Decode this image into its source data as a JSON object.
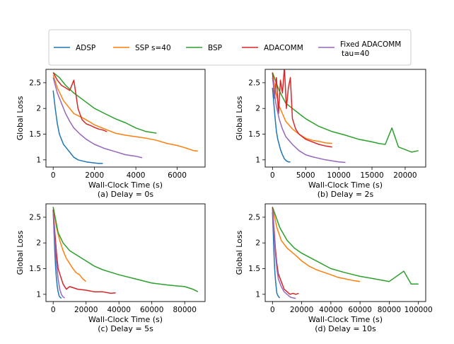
{
  "legend": {
    "placement": "top-center",
    "entries": [
      {
        "name": "ADSP",
        "color": "#1f77b4"
      },
      {
        "name": "SSP s=40",
        "color": "#ff7f0e"
      },
      {
        "name": "BSP",
        "color": "#2ca02c"
      },
      {
        "name": "ADACOMM",
        "color": "#d62728"
      },
      {
        "name": "Fixed ADACOMM",
        "name2": "tau=40",
        "color": "#9467bd"
      }
    ]
  },
  "chart_data": [
    {
      "type": "line",
      "caption": "(a) Delay = 0s",
      "xlabel": "Wall-Clock Time (s)",
      "ylabel": "Global Loss",
      "xlim": [
        -350,
        7350
      ],
      "ylim": [
        0.86,
        2.76
      ],
      "xticks": [
        0,
        2000,
        4000,
        6000
      ],
      "yticks": [
        1.0,
        1.5,
        2.0,
        2.5
      ],
      "series": [
        {
          "name": "ADSP",
          "color": "#1f77b4",
          "x": [
            0,
            100,
            200,
            300,
            400,
            500,
            600,
            700,
            800,
            900,
            1000,
            1200,
            1400,
            1600,
            1800,
            2000,
            2200,
            2400
          ],
          "y": [
            2.35,
            2.0,
            1.7,
            1.5,
            1.4,
            1.3,
            1.25,
            1.2,
            1.15,
            1.1,
            1.05,
            1.0,
            0.98,
            0.96,
            0.95,
            0.94,
            0.93,
            0.93
          ]
        },
        {
          "name": "SSP s=40",
          "color": "#ff7f0e",
          "x": [
            0,
            200,
            500,
            800,
            1000,
            1500,
            2000,
            2500,
            3000,
            3500,
            4000,
            4500,
            5000,
            5500,
            6000,
            6500,
            6800,
            7000
          ],
          "y": [
            2.65,
            2.4,
            2.15,
            2.0,
            1.9,
            1.8,
            1.68,
            1.6,
            1.52,
            1.48,
            1.45,
            1.42,
            1.38,
            1.32,
            1.28,
            1.22,
            1.18,
            1.17
          ]
        },
        {
          "name": "BSP",
          "color": "#2ca02c",
          "x": [
            0,
            300,
            600,
            1000,
            1500,
            2000,
            2500,
            3000,
            3500,
            4000,
            4500,
            5000
          ],
          "y": [
            2.7,
            2.6,
            2.45,
            2.3,
            2.15,
            2.0,
            1.9,
            1.8,
            1.72,
            1.62,
            1.55,
            1.52
          ]
        },
        {
          "name": "ADACOMM",
          "color": "#d62728",
          "x": [
            0,
            200,
            400,
            600,
            800,
            1000,
            1200,
            1400,
            1600,
            1800,
            2000,
            2200,
            2400,
            2600
          ],
          "y": [
            2.7,
            2.55,
            2.45,
            2.4,
            2.35,
            2.55,
            2.0,
            1.78,
            1.7,
            1.67,
            1.63,
            1.6,
            1.58,
            1.55
          ]
        },
        {
          "name": "Fixed ADACOMM tau=40",
          "color": "#9467bd",
          "x": [
            0,
            200,
            400,
            600,
            800,
            1000,
            1300,
            1600,
            2000,
            2500,
            3000,
            3500,
            4000,
            4300
          ],
          "y": [
            2.6,
            2.3,
            2.1,
            1.9,
            1.75,
            1.62,
            1.5,
            1.4,
            1.3,
            1.22,
            1.16,
            1.1,
            1.07,
            1.04
          ]
        }
      ]
    },
    {
      "type": "line",
      "caption": "(b) Delay = 2s",
      "xlabel": "Wall-Clock Time (s)",
      "ylabel": "Global Loss",
      "xlim": [
        -1100,
        23100
      ],
      "ylim": [
        0.86,
        2.76
      ],
      "xticks": [
        0,
        5000,
        10000,
        15000,
        20000
      ],
      "yticks": [
        1.0,
        1.5,
        2.0,
        2.5
      ],
      "series": [
        {
          "name": "ADSP",
          "color": "#1f77b4",
          "x": [
            0,
            200,
            400,
            600,
            800,
            1000,
            1200,
            1500,
            1800,
            2100,
            2400,
            2700
          ],
          "y": [
            2.4,
            2.1,
            1.8,
            1.55,
            1.4,
            1.3,
            1.2,
            1.1,
            1.02,
            0.98,
            0.96,
            0.96
          ]
        },
        {
          "name": "SSP s=40",
          "color": "#ff7f0e",
          "x": [
            0,
            500,
            1000,
            1500,
            2000,
            3000,
            4000,
            5000,
            6000,
            7000,
            8000,
            9000
          ],
          "y": [
            2.7,
            2.3,
            2.05,
            1.9,
            1.75,
            1.6,
            1.5,
            1.42,
            1.38,
            1.36,
            1.33,
            1.32
          ]
        },
        {
          "name": "BSP",
          "color": "#2ca02c",
          "x": [
            0,
            1000,
            2000,
            3000,
            4000,
            5000,
            7000,
            9000,
            11000,
            13000,
            15000,
            16000,
            17000,
            18000,
            19000,
            20000,
            21000,
            22000
          ],
          "y": [
            2.7,
            2.35,
            2.1,
            2.0,
            1.9,
            1.8,
            1.65,
            1.55,
            1.48,
            1.4,
            1.35,
            1.32,
            1.3,
            1.62,
            1.25,
            1.2,
            1.15,
            1.18
          ]
        },
        {
          "name": "ADACOMM",
          "color": "#d62728",
          "x": [
            0,
            300,
            600,
            900,
            1200,
            1500,
            1800,
            2100,
            2400,
            2700,
            3000,
            3500,
            4000,
            5000,
            6000,
            7000,
            8000,
            9000
          ],
          "y": [
            2.7,
            2.2,
            2.6,
            1.9,
            2.55,
            2.3,
            2.8,
            2.0,
            2.4,
            2.6,
            1.8,
            1.6,
            1.5,
            1.4,
            1.35,
            1.3,
            1.27,
            1.25
          ]
        },
        {
          "name": "Fixed ADACOMM tau=40",
          "color": "#9467bd",
          "x": [
            0,
            500,
            1000,
            1500,
            2000,
            3000,
            4000,
            5000,
            6000,
            7000,
            8000,
            9000,
            10000,
            11000
          ],
          "y": [
            2.6,
            2.1,
            1.8,
            1.6,
            1.45,
            1.3,
            1.18,
            1.1,
            1.06,
            1.03,
            1.0,
            0.98,
            0.96,
            0.95
          ]
        }
      ]
    },
    {
      "type": "line",
      "caption": "(c) Delay = 5s",
      "xlabel": "Wall-Clock Time (s)",
      "ylabel": "Global Loss",
      "xlim": [
        -4400,
        92400
      ],
      "ylim": [
        0.86,
        2.76
      ],
      "xticks": [
        0,
        20000,
        40000,
        60000,
        80000
      ],
      "yticks": [
        1.0,
        1.5,
        2.0,
        2.5
      ],
      "series": [
        {
          "name": "ADSP",
          "color": "#1f77b4",
          "x": [
            0,
            500,
            1000,
            1500,
            2000,
            2500,
            3000,
            3500,
            4000,
            5000
          ],
          "y": [
            2.65,
            2.2,
            1.8,
            1.5,
            1.3,
            1.15,
            1.05,
            0.98,
            0.95,
            0.92
          ]
        },
        {
          "name": "SSP s=40",
          "color": "#ff7f0e",
          "x": [
            0,
            2000,
            4000,
            6000,
            8000,
            10000,
            12000,
            14000,
            16000,
            18000,
            20000
          ],
          "y": [
            2.7,
            2.3,
            2.05,
            1.85,
            1.7,
            1.6,
            1.5,
            1.42,
            1.38,
            1.3,
            1.25
          ]
        },
        {
          "name": "BSP",
          "color": "#2ca02c",
          "x": [
            0,
            3000,
            6000,
            10000,
            15000,
            20000,
            25000,
            30000,
            40000,
            50000,
            60000,
            70000,
            80000,
            85000,
            88000
          ],
          "y": [
            2.7,
            2.2,
            2.0,
            1.85,
            1.75,
            1.65,
            1.55,
            1.48,
            1.38,
            1.3,
            1.22,
            1.18,
            1.15,
            1.1,
            1.05
          ]
        },
        {
          "name": "ADACOMM",
          "color": "#d62728",
          "x": [
            0,
            1000,
            2000,
            3000,
            4000,
            5000,
            6000,
            8000,
            10000,
            15000,
            20000,
            25000,
            30000,
            35000,
            38000
          ],
          "y": [
            2.65,
            2.2,
            1.8,
            1.5,
            1.4,
            1.3,
            1.2,
            1.1,
            1.15,
            1.1,
            1.08,
            1.05,
            1.05,
            1.02,
            1.03
          ]
        },
        {
          "name": "Fixed ADACOMM tau=40",
          "color": "#9467bd",
          "x": [
            0,
            1000,
            2000,
            3000,
            4000,
            5000,
            6000,
            7000
          ],
          "y": [
            2.6,
            2.0,
            1.6,
            1.3,
            1.1,
            1.0,
            0.95,
            0.93
          ]
        }
      ]
    },
    {
      "type": "line",
      "caption": "(d) Delay = 10s",
      "xlabel": "Wall-Clock Time (s)",
      "ylabel": "Global Loss",
      "xlim": [
        -5000,
        105000
      ],
      "ylim": [
        0.86,
        2.76
      ],
      "xticks": [
        0,
        20000,
        40000,
        60000,
        80000,
        100000
      ],
      "yticks": [
        1.0,
        1.5,
        2.0,
        2.5
      ],
      "series": [
        {
          "name": "ADSP",
          "color": "#1f77b4",
          "x": [
            0,
            500,
            1000,
            1500,
            2000,
            2500,
            3000,
            4000,
            5000
          ],
          "y": [
            2.6,
            2.2,
            1.8,
            1.5,
            1.3,
            1.15,
            1.02,
            0.96,
            0.93
          ]
        },
        {
          "name": "SSP s=40",
          "color": "#ff7f0e",
          "x": [
            0,
            3000,
            6000,
            10000,
            15000,
            20000,
            25000,
            30000,
            35000,
            40000,
            45000,
            50000,
            55000,
            60000
          ],
          "y": [
            2.7,
            2.3,
            2.05,
            1.9,
            1.78,
            1.65,
            1.55,
            1.48,
            1.43,
            1.38,
            1.33,
            1.3,
            1.27,
            1.25
          ]
        },
        {
          "name": "BSP",
          "color": "#2ca02c",
          "x": [
            0,
            5000,
            10000,
            15000,
            20000,
            30000,
            40000,
            50000,
            60000,
            70000,
            80000,
            90000,
            95000,
            100000
          ],
          "y": [
            2.7,
            2.3,
            2.05,
            1.9,
            1.8,
            1.65,
            1.5,
            1.42,
            1.35,
            1.3,
            1.25,
            1.45,
            1.2,
            1.2
          ]
        },
        {
          "name": "ADACOMM",
          "color": "#d62728",
          "x": [
            0,
            1000,
            2000,
            3000,
            4000,
            6000,
            8000,
            10000,
            12000,
            14000,
            16000,
            18000
          ],
          "y": [
            2.7,
            2.3,
            1.9,
            1.6,
            1.4,
            1.25,
            1.1,
            1.05,
            1.0,
            1.02,
            1.0,
            1.02
          ]
        },
        {
          "name": "Fixed ADACOMM tau=40",
          "color": "#9467bd",
          "x": [
            0,
            1000,
            2000,
            3000,
            4000,
            6000,
            8000,
            10000,
            12000,
            14000,
            16000
          ],
          "y": [
            2.65,
            2.2,
            1.8,
            1.5,
            1.3,
            1.15,
            1.05,
            1.0,
            0.95,
            0.93,
            0.92
          ]
        }
      ]
    }
  ]
}
